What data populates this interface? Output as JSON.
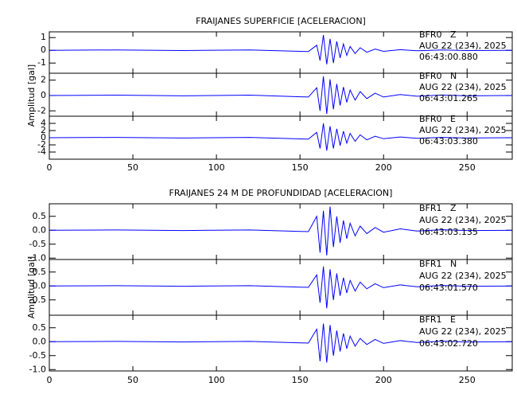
{
  "chart_data": [
    {
      "type": "line",
      "title": "FRAIJANES SUPERFICIE [ACELERACION]",
      "y_label": "Amplitud [gal]",
      "x": [
        0,
        40,
        80,
        120,
        155,
        160,
        162,
        164,
        166,
        168,
        170,
        172,
        174,
        176,
        178,
        180,
        183,
        186,
        190,
        195,
        200,
        210,
        220,
        235,
        250,
        277
      ],
      "xlim": [
        0,
        277
      ],
      "xticks": [
        0,
        50,
        100,
        150,
        200,
        250
      ],
      "panels": [
        {
          "ylim": [
            -1.8,
            1.45
          ],
          "yticks": [
            1,
            0,
            -1
          ],
          "series": [
            {
              "name": "BFR0   Z",
              "color": "#0000ff",
              "values": [
                0,
                0.03,
                -0.02,
                0.03,
                -0.1,
                0.4,
                -0.8,
                1.2,
                -1.1,
                0.9,
                -1.0,
                0.7,
                -0.6,
                0.5,
                -0.4,
                0.3,
                -0.25,
                0.2,
                -0.15,
                0.1,
                -0.08,
                0.05,
                -0.04,
                0.03,
                -0.02,
                0
              ]
            }
          ],
          "annotations": [
            "AUG 22 (234), 2025",
            "06:43:00.880"
          ]
        },
        {
          "ylim": [
            -2.7,
            2.9
          ],
          "yticks": [
            2,
            0,
            -2
          ],
          "series": [
            {
              "name": "BFR0   N",
              "color": "#0000ff",
              "values": [
                0,
                0.05,
                -0.05,
                0.05,
                -0.2,
                1.0,
                -2.0,
                2.5,
                -2.4,
                2.1,
                -1.8,
                1.5,
                -1.3,
                1.1,
                -0.9,
                0.7,
                -0.6,
                0.5,
                -0.4,
                0.3,
                -0.2,
                0.12,
                -0.1,
                0.06,
                -0.05,
                0
              ]
            }
          ],
          "annotations": [
            "AUG 22 (234), 2025",
            "06:43:01.265"
          ]
        },
        {
          "ylim": [
            -6,
            6
          ],
          "yticks": [
            4,
            2,
            0,
            -2,
            -4
          ],
          "series": [
            {
              "name": "BFR0   E",
              "color": "#0000ff",
              "values": [
                0,
                0.1,
                -0.1,
                0.1,
                -0.4,
                1.5,
                -3.0,
                4.0,
                -3.6,
                3.2,
                -3.0,
                2.5,
                -2.2,
                1.8,
                -1.5,
                1.2,
                -1.0,
                0.8,
                -0.6,
                0.4,
                -0.3,
                0.2,
                -0.15,
                0.1,
                -0.08,
                0
              ]
            }
          ],
          "annotations": [
            "AUG 22 (234), 2025",
            "06:43:03.380"
          ]
        }
      ]
    },
    {
      "type": "line",
      "title": "FRAIJANES 24 M DE PROFUNDIDAD [ACELERACION]",
      "y_label": "Amplitud [gal]",
      "x": [
        0,
        40,
        80,
        120,
        155,
        160,
        162,
        164,
        166,
        168,
        170,
        172,
        174,
        176,
        178,
        180,
        183,
        186,
        190,
        195,
        200,
        210,
        220,
        235,
        250,
        277
      ],
      "xlim": [
        0,
        277
      ],
      "xticks": [
        0,
        50,
        100,
        150,
        200,
        250
      ],
      "panels": [
        {
          "ylim": [
            -1.05,
            0.95
          ],
          "yticks": [
            0.5,
            {
              "value": 0,
              "label": "0.0"
            },
            -0.5,
            {
              "value": -1,
              "label": "-1.0"
            }
          ],
          "series": [
            {
              "name": "BFR1   Z",
              "color": "#0000ff",
              "values": [
                0,
                0.01,
                -0.01,
                0.01,
                -0.05,
                0.5,
                -0.8,
                0.7,
                -0.9,
                0.85,
                -0.6,
                0.5,
                -0.45,
                0.35,
                -0.3,
                0.25,
                -0.2,
                0.15,
                -0.12,
                0.1,
                -0.07,
                0.05,
                -0.03,
                0.02,
                -0.01,
                0
              ]
            }
          ],
          "annotations": [
            "AUG 22 (234), 2025",
            "06:43:03.135"
          ]
        },
        {
          "ylim": [
            -1.05,
            0.95
          ],
          "yticks": [
            0.5,
            {
              "value": 0,
              "label": "0.0"
            },
            -0.5
          ],
          "series": [
            {
              "name": "BFR1   N",
              "color": "#0000ff",
              "values": [
                0,
                0.01,
                -0.01,
                0.01,
                -0.05,
                0.4,
                -0.6,
                0.7,
                -0.8,
                0.6,
                -0.5,
                0.45,
                -0.35,
                0.3,
                -0.25,
                0.2,
                -0.18,
                0.14,
                -0.1,
                0.08,
                -0.06,
                0.04,
                -0.03,
                0.02,
                -0.01,
                0
              ]
            }
          ],
          "annotations": [
            "AUG 22 (234), 2025",
            "06:43:01.570"
          ]
        },
        {
          "ylim": [
            -1.05,
            0.95
          ],
          "yticks": [
            0.5,
            {
              "value": 0,
              "label": "0.0"
            },
            -0.5,
            {
              "value": -1,
              "label": "-1.0"
            }
          ],
          "series": [
            {
              "name": "BFR1   E",
              "color": "#0000ff",
              "values": [
                0,
                0.01,
                -0.01,
                0.01,
                -0.05,
                0.45,
                -0.7,
                0.65,
                -0.75,
                0.6,
                -0.5,
                0.4,
                -0.35,
                0.3,
                -0.25,
                0.2,
                -0.16,
                0.12,
                -0.1,
                0.08,
                -0.06,
                0.04,
                -0.03,
                0.02,
                -0.01,
                0
              ]
            }
          ],
          "annotations": [
            "AUG 22 (234), 2025",
            "06:43:02.720"
          ]
        }
      ]
    }
  ]
}
